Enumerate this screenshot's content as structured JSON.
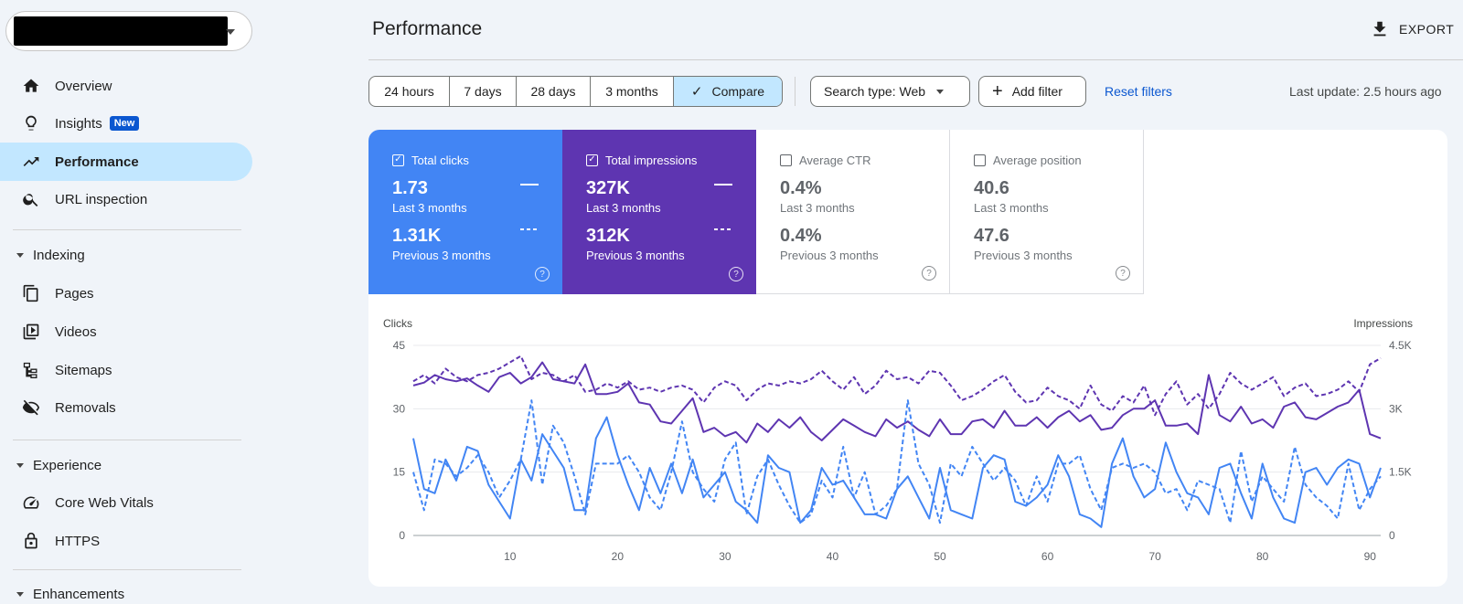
{
  "sidebar": {
    "property": "",
    "nav": [
      {
        "label": "Overview",
        "icon": "home-icon"
      },
      {
        "label": "Insights",
        "icon": "lightbulb-icon",
        "badge": "New"
      },
      {
        "label": "Performance",
        "icon": "trending-up-icon",
        "active": true
      },
      {
        "label": "URL inspection",
        "icon": "search-icon"
      }
    ],
    "sections": [
      {
        "label": "Indexing",
        "items": [
          {
            "label": "Pages",
            "icon": "pages-icon"
          },
          {
            "label": "Videos",
            "icon": "video-icon"
          },
          {
            "label": "Sitemaps",
            "icon": "sitemap-icon"
          },
          {
            "label": "Removals",
            "icon": "removals-icon"
          }
        ]
      },
      {
        "label": "Experience",
        "items": [
          {
            "label": "Core Web Vitals",
            "icon": "speed-icon"
          },
          {
            "label": "HTTPS",
            "icon": "lock-icon"
          }
        ]
      },
      {
        "label": "Enhancements",
        "items": []
      }
    ]
  },
  "header": {
    "title": "Performance",
    "export_label": "EXPORT"
  },
  "filters": {
    "date_ranges": [
      "24 hours",
      "7 days",
      "28 days",
      "3 months"
    ],
    "compare_label": "Compare",
    "search_type": "Search type: Web",
    "add_filter": "Add filter",
    "reset": "Reset filters",
    "last_update": "Last update: 2.5 hours ago"
  },
  "metrics": [
    {
      "title": "Total clicks",
      "checked": true,
      "current": "1.73",
      "current_period": "Last 3 months",
      "previous": "1.31K",
      "previous_period": "Previous 3 months",
      "color": "#4285f4"
    },
    {
      "title": "Total impressions",
      "checked": true,
      "current": "327K",
      "current_period": "Last 3 months",
      "previous": "312K",
      "previous_period": "Previous 3 months",
      "color": "#5e35b1"
    },
    {
      "title": "Average CTR",
      "checked": false,
      "current": "0.4%",
      "current_period": "Last 3 months",
      "previous": "0.4%",
      "previous_period": "Previous 3 months"
    },
    {
      "title": "Average position",
      "checked": false,
      "current": "40.6",
      "current_period": "Last 3 months",
      "previous": "47.6",
      "previous_period": "Previous 3 months"
    }
  ],
  "chart_data": {
    "type": "line",
    "ylabel_left": "Clicks",
    "ylabel_right": "Impressions",
    "ylim_left": [
      0,
      45
    ],
    "ylim_right": [
      0,
      4500
    ],
    "yticks_left": [
      "0",
      "15",
      "30",
      "45"
    ],
    "yticks_right": [
      "0",
      "1.5K",
      "3K",
      "4.5K"
    ],
    "xticks": [
      "10",
      "20",
      "30",
      "40",
      "50",
      "60",
      "70",
      "80",
      "90"
    ],
    "x_range": [
      1,
      91
    ],
    "grid": true,
    "series": [
      {
        "axis": "right",
        "style": "solid",
        "color": "#5e35b1",
        "values": [
          3550,
          3620,
          3800,
          3700,
          3650,
          3720,
          3550,
          3400,
          3750,
          3850,
          3600,
          3750,
          4100,
          3700,
          3650,
          3600,
          4050,
          3350,
          3350,
          3400,
          3600,
          3150,
          3100,
          2700,
          2650,
          2950,
          3250,
          2450,
          2550,
          2350,
          2450,
          2200,
          2650,
          2450,
          2750,
          2550,
          2800,
          2450,
          2250,
          2500,
          2750,
          2600,
          2450,
          2350,
          2750,
          2550,
          2700,
          2500,
          2350,
          2750,
          2400,
          2400,
          2700,
          2750,
          2550,
          2950,
          2600,
          2600,
          2800,
          2550,
          2800,
          2950,
          2700,
          2850,
          2500,
          2550,
          2850,
          3000,
          3000,
          3200,
          2600,
          2600,
          2650,
          2400,
          3800,
          2850,
          2700,
          3050,
          2650,
          2750,
          2550,
          3050,
          3150,
          2800,
          2750,
          2900,
          3050,
          3150,
          3450,
          2400,
          2300
        ]
      },
      {
        "axis": "right",
        "style": "dashed",
        "color": "#5e35b1",
        "values": [
          3650,
          3800,
          3600,
          3950,
          3750,
          3650,
          3800,
          3850,
          3950,
          4100,
          4250,
          3700,
          3850,
          3800,
          3650,
          3800,
          3400,
          3450,
          3600,
          3500,
          3650,
          3450,
          3500,
          3400,
          3500,
          3550,
          3450,
          3150,
          3500,
          3650,
          3550,
          3200,
          3450,
          3600,
          3550,
          3650,
          3600,
          3700,
          3900,
          3650,
          3450,
          3750,
          3350,
          3550,
          3900,
          3700,
          3750,
          3600,
          3900,
          3850,
          3550,
          3200,
          3300,
          3450,
          3650,
          3800,
          3400,
          3150,
          3200,
          3500,
          3300,
          3200,
          3000,
          3550,
          3100,
          2950,
          3300,
          3150,
          3550,
          2850,
          3350,
          3650,
          3100,
          3350,
          3000,
          3350,
          3850,
          3600,
          3450,
          3600,
          3750,
          3300,
          3500,
          3600,
          3300,
          3350,
          3450,
          3650,
          3400,
          4050,
          4200
        ]
      },
      {
        "axis": "left",
        "style": "solid",
        "color": "#4285f4",
        "values": [
          23,
          11,
          10,
          18,
          13,
          21,
          20,
          12,
          8,
          4,
          18,
          13,
          24,
          20,
          16,
          6,
          6,
          23,
          28,
          19,
          12,
          6,
          16,
          10,
          17,
          10,
          18,
          9,
          12,
          15,
          8,
          6,
          3,
          19,
          16,
          15,
          3,
          6,
          16,
          12,
          13,
          9,
          5,
          5,
          4,
          11,
          14,
          9,
          4,
          16,
          6,
          5,
          4,
          16,
          19,
          18,
          8,
          7,
          9,
          12,
          19,
          14,
          5,
          4,
          2,
          17,
          23,
          14,
          9,
          11,
          22,
          15,
          10,
          9,
          5,
          16,
          17,
          10,
          4,
          17,
          9,
          4,
          3,
          15,
          16,
          12,
          16,
          18,
          17,
          9,
          16
        ]
      },
      {
        "axis": "left",
        "style": "dashed",
        "color": "#4285f4",
        "values": [
          15,
          6,
          18,
          17,
          14,
          16,
          19,
          15,
          9,
          13,
          18,
          32,
          12,
          26,
          22,
          14,
          5,
          17,
          17,
          17,
          19,
          15,
          9,
          6,
          15,
          27,
          15,
          11,
          8,
          18,
          22,
          5,
          14,
          18,
          12,
          7,
          3,
          5,
          13,
          9,
          21,
          9,
          15,
          5,
          7,
          11,
          32,
          17,
          12,
          3,
          17,
          14,
          21,
          17,
          13,
          16,
          13,
          7,
          14,
          8,
          17,
          17,
          19,
          11,
          6,
          16,
          17,
          16,
          17,
          15,
          10,
          11,
          6,
          13,
          12,
          11,
          3,
          20,
          8,
          14,
          11,
          8,
          21,
          12,
          9,
          7,
          4,
          17,
          6,
          11,
          14
        ]
      }
    ]
  }
}
